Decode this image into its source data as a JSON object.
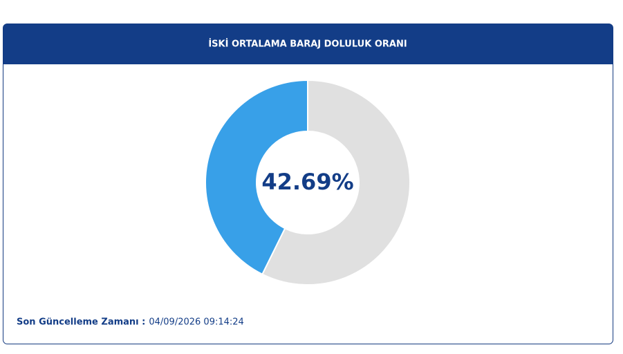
{
  "chart_data": {
    "type": "donut",
    "title": "İSKİ ORTALAMA BARAJ DOLULUK ORANI",
    "values": [
      42.69,
      57.31
    ],
    "value_labels": [
      "42.69%",
      null
    ],
    "colors": [
      "#38a0e8",
      "#e0e0e0"
    ]
  },
  "footer": {
    "label": "Son Güncelleme Zamanı :",
    "timestamp": "04/09/2026 09:14:24"
  }
}
